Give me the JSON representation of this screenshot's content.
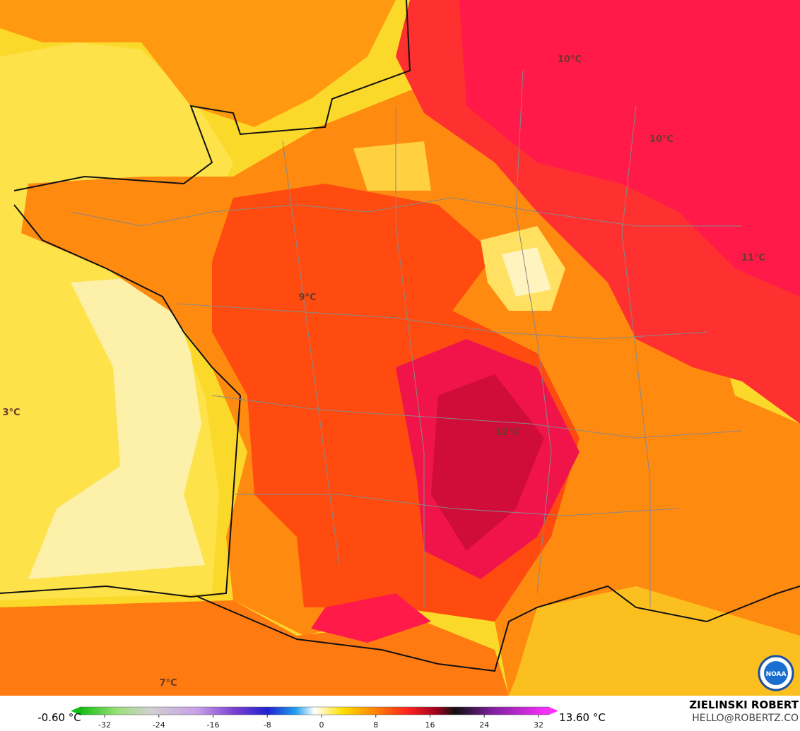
{
  "map_labels": [
    "10°C",
    "10°C",
    "11°C",
    "9°C",
    "12°C",
    "3°C",
    "7°C"
  ],
  "colorbar": {
    "min_label": "-0.60 °C",
    "max_label": "13.60 °C",
    "ticks": [
      -32,
      -24,
      -16,
      -8,
      0,
      8,
      16,
      24,
      32
    ]
  },
  "credit": {
    "author": "ZIELINSKI ROBERT",
    "email": "HELLO@ROBERTZ.CO",
    "logo": "NOAA"
  }
}
